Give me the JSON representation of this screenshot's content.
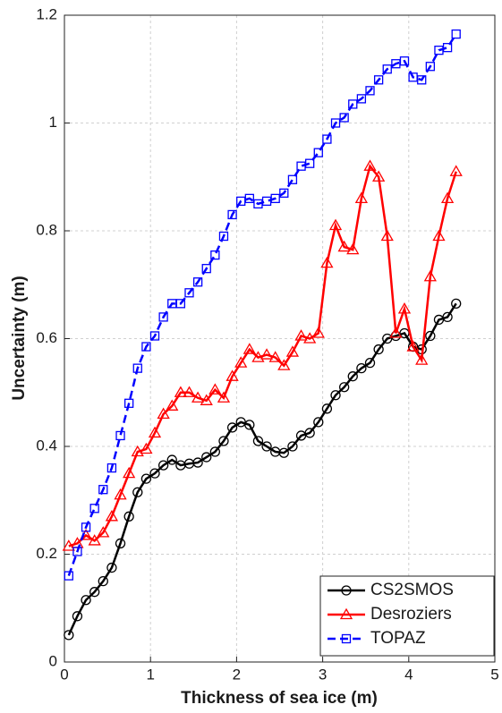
{
  "chart_data": {
    "type": "line",
    "xlabel": "Thickness of sea ice (m)",
    "ylabel": "Uncertainty (m)",
    "x": [
      0.05,
      0.15,
      0.25,
      0.35,
      0.45,
      0.55,
      0.65,
      0.75,
      0.85,
      0.95,
      1.05,
      1.15,
      1.25,
      1.35,
      1.45,
      1.55,
      1.65,
      1.75,
      1.85,
      1.95,
      2.05,
      2.15,
      2.25,
      2.35,
      2.45,
      2.55,
      2.65,
      2.75,
      2.85,
      2.95,
      3.05,
      3.15,
      3.25,
      3.35,
      3.45,
      3.55,
      3.65,
      3.75,
      3.85,
      3.95,
      4.05,
      4.15,
      4.25,
      4.35,
      4.45,
      4.55
    ],
    "series": [
      {
        "name": "CS2SMOS",
        "color": "#000000",
        "marker": "circle",
        "linestyle": "solid",
        "values": [
          0.05,
          0.085,
          0.115,
          0.13,
          0.15,
          0.175,
          0.22,
          0.27,
          0.315,
          0.34,
          0.35,
          0.365,
          0.375,
          0.365,
          0.368,
          0.37,
          0.38,
          0.39,
          0.41,
          0.435,
          0.445,
          0.44,
          0.41,
          0.4,
          0.39,
          0.388,
          0.4,
          0.42,
          0.425,
          0.445,
          0.47,
          0.495,
          0.51,
          0.53,
          0.545,
          0.555,
          0.58,
          0.6,
          0.605,
          0.61,
          0.585,
          0.58,
          0.605,
          0.635,
          0.64,
          0.665
        ]
      },
      {
        "name": "Desroziers",
        "color": "#ff0000",
        "marker": "triangle",
        "linestyle": "solid",
        "values": [
          0.215,
          0.22,
          0.235,
          0.225,
          0.24,
          0.27,
          0.31,
          0.35,
          0.39,
          0.395,
          0.425,
          0.46,
          0.475,
          0.5,
          0.5,
          0.49,
          0.485,
          0.505,
          0.49,
          0.53,
          0.555,
          0.58,
          0.565,
          0.57,
          0.565,
          0.55,
          0.575,
          0.605,
          0.6,
          0.61,
          0.74,
          0.81,
          0.77,
          0.765,
          0.86,
          0.92,
          0.9,
          0.79,
          0.61,
          0.655,
          0.585,
          0.56,
          0.715,
          0.79,
          0.86,
          0.91
        ]
      },
      {
        "name": "TOPAZ",
        "color": "#0000ff",
        "marker": "square",
        "linestyle": "dashed",
        "values": [
          0.16,
          0.205,
          0.25,
          0.285,
          0.32,
          0.36,
          0.42,
          0.48,
          0.545,
          0.585,
          0.605,
          0.64,
          0.665,
          0.665,
          0.685,
          0.705,
          0.73,
          0.755,
          0.79,
          0.83,
          0.855,
          0.86,
          0.85,
          0.855,
          0.86,
          0.87,
          0.895,
          0.92,
          0.925,
          0.945,
          0.97,
          1.0,
          1.01,
          1.035,
          1.045,
          1.06,
          1.08,
          1.1,
          1.11,
          1.115,
          1.085,
          1.08,
          1.105,
          1.135,
          1.14,
          1.165
        ]
      }
    ],
    "xlim": [
      0,
      5
    ],
    "xticks": [
      0,
      1,
      2,
      3,
      4,
      5
    ],
    "ylim": [
      0,
      1.2
    ],
    "yticks": [
      0,
      0.2,
      0.4,
      0.6,
      0.8,
      1,
      1.2
    ],
    "grid": true,
    "legend": "lower right"
  }
}
